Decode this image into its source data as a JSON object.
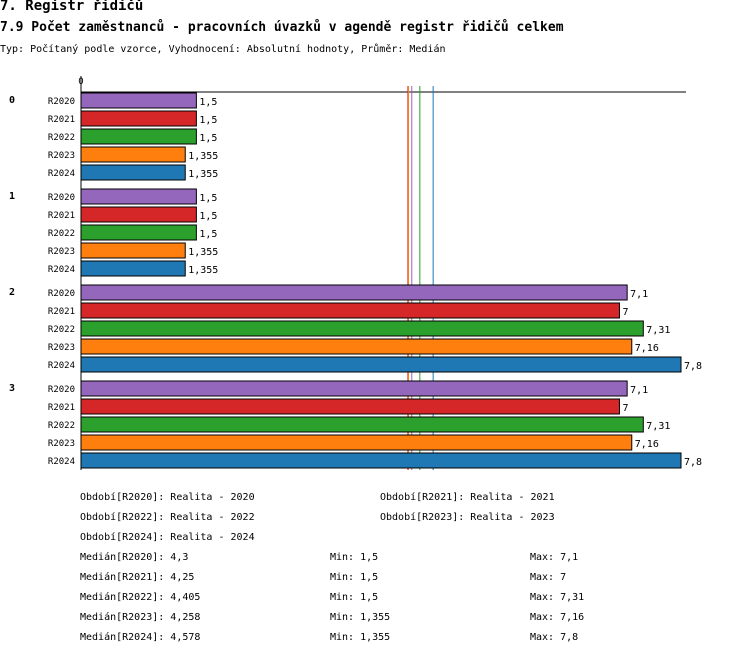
{
  "header": {
    "section_title": "7. Registr řidičů",
    "title": "7.9 Počet zaměstnanců - pracovních úvazků v agendě registr řidičů celkem",
    "subtitle": "Typ: Počítaný podle vzorce, Vyhodnocení: Absolutní hodnoty, Průměr: Medián"
  },
  "chart_data": {
    "type": "bar",
    "orientation": "horizontal",
    "axis_zero_label": "0",
    "groups": [
      "0",
      "1",
      "2",
      "3"
    ],
    "series": [
      {
        "name": "R2020",
        "color": "#9467bd",
        "values": [
          1.5,
          1.5,
          7.1,
          7.1
        ],
        "labels": [
          "1,5",
          "1,5",
          "7,1",
          "7,1"
        ]
      },
      {
        "name": "R2021",
        "color": "#d62728",
        "values": [
          1.5,
          1.5,
          7,
          7
        ],
        "labels": [
          "1,5",
          "1,5",
          "7",
          "7"
        ]
      },
      {
        "name": "R2022",
        "color": "#2ca02c",
        "values": [
          1.5,
          1.5,
          7.31,
          7.31
        ],
        "labels": [
          "1,5",
          "1,5",
          "7,31",
          "7,31"
        ]
      },
      {
        "name": "R2023",
        "color": "#ff7f0e",
        "values": [
          1.355,
          1.355,
          7.16,
          7.16
        ],
        "labels": [
          "1,355",
          "1,355",
          "7,16",
          "7,16"
        ]
      },
      {
        "name": "R2024",
        "color": "#1f77b4",
        "values": [
          1.355,
          1.355,
          7.8,
          7.8
        ],
        "labels": [
          "1,355",
          "1,355",
          "7,8",
          "7,8"
        ]
      }
    ],
    "median_lines": [
      {
        "series": "R2020",
        "value": 4.3,
        "color": "#9467bd"
      },
      {
        "series": "R2021",
        "value": 4.25,
        "color": "#d62728"
      },
      {
        "series": "R2022",
        "value": 4.405,
        "color": "#2ca02c"
      },
      {
        "series": "R2023",
        "value": 4.258,
        "color": "#ff7f0e"
      },
      {
        "series": "R2024",
        "value": 4.578,
        "color": "#1f77b4"
      }
    ],
    "xlim": [
      0,
      7.8
    ]
  },
  "legend": {
    "periods": [
      "Období[R2020]: Realita - 2020",
      "Období[R2021]: Realita - 2021",
      "Období[R2022]: Realita - 2022",
      "Období[R2023]: Realita - 2023",
      "Období[R2024]: Realita - 2024"
    ],
    "stats": [
      {
        "median": "Medián[R2020]: 4,3",
        "min": "Min: 1,5",
        "max": "Max: 7,1"
      },
      {
        "median": "Medián[R2021]: 4,25",
        "min": "Min: 1,5",
        "max": "Max: 7"
      },
      {
        "median": "Medián[R2022]: 4,405",
        "min": "Min: 1,5",
        "max": "Max: 7,31"
      },
      {
        "median": "Medián[R2023]: 4,258",
        "min": "Min: 1,355",
        "max": "Max: 7,16"
      },
      {
        "median": "Medián[R2024]: 4,578",
        "min": "Min: 1,355",
        "max": "Max: 7,8"
      }
    ]
  }
}
